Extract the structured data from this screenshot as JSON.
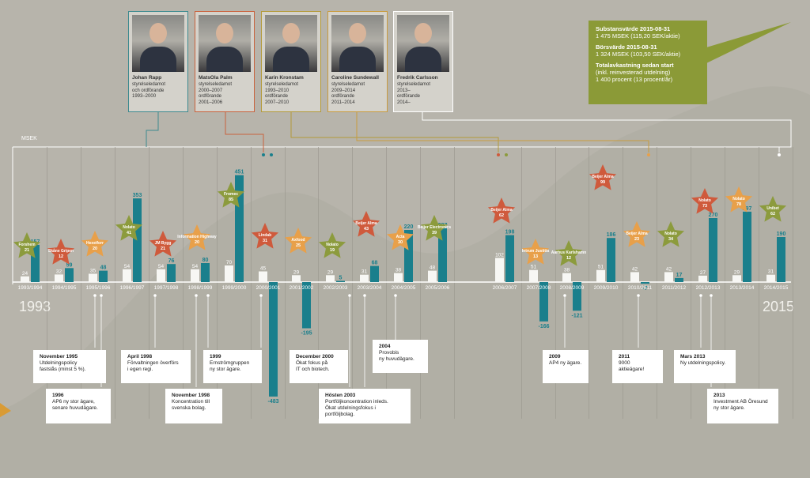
{
  "people": [
    {
      "name": "Johan Rapp",
      "role": "styrelseledamot\noch ordförande\n1993–2000",
      "color": "#3d8a8f"
    },
    {
      "name": "MatsOla Palm",
      "role": "styrelseledamot\n2000–2007\nordförande\n2001–2006",
      "color": "#c9623d"
    },
    {
      "name": "Karin Kronstam",
      "role": "styrelseledamot\n1993–2010\nordförande\n2007–2010",
      "color": "#b39a3a"
    },
    {
      "name": "Caroline Sundewall",
      "role": "styrelseledamot\n2009–2014\nordförande\n2011–2014",
      "color": "#c89b3e"
    },
    {
      "name": "Fredrik Carlsson",
      "role": "styrelseledamot\n2013–\nordförande\n2014–",
      "color": "#ffffff"
    }
  ],
  "summary": {
    "t1": "Substansvärde 2015-08-31",
    "v1": "1 475 MSEK (115,20 SEK/aktie)",
    "t2": "Börsvärde 2015-08-31",
    "v2": "1 324 MSEK (103,50 SEK/aktie)",
    "t3": "Totalavkastning sedan start",
    "v3": "(inkl. reinvesterad utdelning)",
    "v4": "1 400 procent (13 procent/år)",
    "color": "#8b9a37"
  },
  "labels": {
    "msek": "MSEK",
    "start_year": "1993",
    "end_year": "2015"
  },
  "colors": {
    "teal": "#1a7f8c",
    "white_bar": "#f7f7f4",
    "star_orange": "#e8a04a",
    "star_red": "#cf5a3c",
    "star_green": "#8c9b3d"
  },
  "chart_data": {
    "type": "bar",
    "title": "",
    "ylabel": "MSEK",
    "categories": [
      "1993/1994",
      "1994/1995",
      "1995/1996",
      "1996/1997",
      "1997/1998",
      "1998/1999",
      "1999/2000",
      "2000/2001",
      "2001/2002",
      "2002/2003",
      "2003/2004",
      "2004/2005",
      "2005/2006",
      "2006/2007",
      "2007/2008",
      "2008/2009",
      "2009/2010",
      "2010/2011",
      "2011/2012",
      "2012/2013",
      "2013/2014",
      "2014/2015"
    ],
    "series": [
      {
        "values": [
          24,
          32,
          35,
          54,
          54,
          54,
          70,
          45,
          29,
          29,
          31,
          38,
          48,
          102,
          51,
          38,
          51,
          42,
          42,
          27,
          29,
          31
        ]
      },
      {
        "values": [
          157,
          59,
          48,
          353,
          76,
          80,
          451,
          -483,
          -195,
          5,
          68,
          220,
          227,
          198,
          -166,
          -121,
          186,
          -7,
          17,
          270,
          297,
          190
        ]
      }
    ],
    "stars": [
      {
        "cat": "1993/1994",
        "label": "Forshem",
        "value": "21",
        "color": "green"
      },
      {
        "cat": "1994/1995",
        "label": "Skåne Gripen",
        "value": "12",
        "color": "red"
      },
      {
        "cat": "1995/1996",
        "label": "Hexeiforr",
        "value": "20",
        "color": "orange"
      },
      {
        "cat": "1996/1997",
        "label": "Nolato",
        "value": "41",
        "color": "green"
      },
      {
        "cat": "1997/1998",
        "label": "JM Bygg",
        "value": "21",
        "color": "red"
      },
      {
        "cat": "1998/1999",
        "label": "Information Highway",
        "value": "20",
        "color": "orange"
      },
      {
        "cat": "1999/2000",
        "label": "Fromec",
        "value": "85",
        "color": "green"
      },
      {
        "cat": "2000/2001",
        "label": "Lindab",
        "value": "31",
        "color": "red"
      },
      {
        "cat": "2001/2002",
        "label": "Axfood",
        "value": "25",
        "color": "orange"
      },
      {
        "cat": "2002/2003",
        "label": "Nolato",
        "value": "19",
        "color": "green"
      },
      {
        "cat": "2003/2004",
        "label": "Beijer Alma",
        "value": "43",
        "color": "red"
      },
      {
        "cat": "2004/2005",
        "label": "Acta",
        "value": "30",
        "color": "orange"
      },
      {
        "cat": "2005/2006",
        "label": "Beijer Electronics",
        "value": "39",
        "color": "green"
      },
      {
        "cat": "2006/2007",
        "label": "Beijer Alma",
        "value": "62",
        "color": "red"
      },
      {
        "cat": "2007/2008",
        "label": "Intrum Justitia",
        "value": "13",
        "color": "orange"
      },
      {
        "cat": "2008/2009",
        "label": "Aarhus Karlshamn",
        "value": "12",
        "color": "green"
      },
      {
        "cat": "2009/2010",
        "label": "Beijer Alma",
        "value": "99",
        "color": "red"
      },
      {
        "cat": "2010/2011",
        "label": "Beijer Alma",
        "value": "23",
        "color": "orange"
      },
      {
        "cat": "2011/2012",
        "label": "Nolato",
        "value": "34",
        "color": "green"
      },
      {
        "cat": "2012/2013",
        "label": "Nolato",
        "value": "73",
        "color": "red"
      },
      {
        "cat": "2013/2014",
        "label": "Nolato",
        "value": "78",
        "color": "orange"
      },
      {
        "cat": "2014/2015",
        "label": "Unibet",
        "value": "62",
        "color": "green"
      }
    ]
  },
  "events": [
    {
      "date": "November 1995",
      "text": "Utdelningspolicy\nfastslås (minst 5 %)."
    },
    {
      "date": "1996",
      "text": "AP6 ny stor ägare,\nsenare huvudägare."
    },
    {
      "date": "April 1998",
      "text": "Förvaltningen överförs\ni egen regi."
    },
    {
      "date": "November 1998",
      "text": "Koncentration till\nsvenska bolag."
    },
    {
      "date": "1999",
      "text": "Ernströmgruppen\nny stor ägare."
    },
    {
      "date": "December 2000",
      "text": "Ökat fokus på\nIT och biotech."
    },
    {
      "date": "Hösten 2003",
      "text": "Portföljkoncentration inleds.\nÖkat utdelningsfokus i portföljbolag."
    },
    {
      "date": "2004",
      "text": "Provobis\nny huvudägare."
    },
    {
      "date": "2009",
      "text": "AP4 ny ägare."
    },
    {
      "date": "2011",
      "text": "9000 aktieägare!"
    },
    {
      "date": "Mars 2013",
      "text": "Ny utdelningspolicy."
    },
    {
      "date": "2013",
      "text": "Investment AB Öresund\nny stor ägare."
    }
  ]
}
